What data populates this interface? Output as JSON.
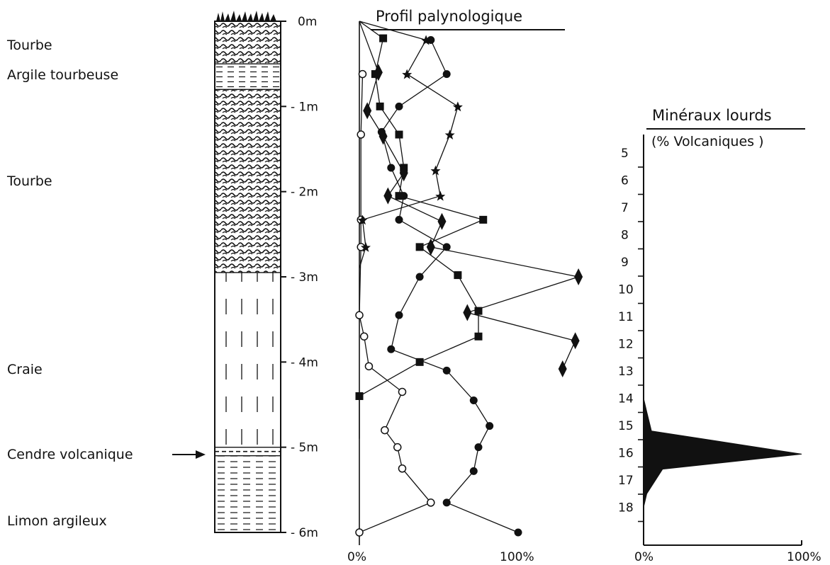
{
  "chart_data": [
    {
      "type": "stratigraphic-column",
      "layers": [
        {
          "label": "Tourbe",
          "top_m": 0.0,
          "bottom_m": 0.5,
          "pattern": "peat"
        },
        {
          "label": "Argile tourbeuse",
          "top_m": 0.5,
          "bottom_m": 0.8,
          "pattern": "clay"
        },
        {
          "label": "Tourbe",
          "top_m": 0.8,
          "bottom_m": 2.95,
          "pattern": "peat"
        },
        {
          "label": "Craie",
          "top_m": 2.95,
          "bottom_m": 5.0,
          "pattern": "chalk"
        },
        {
          "label": "Cendre volcanique",
          "top_m": 5.0,
          "bottom_m": 5.1,
          "pattern": "ash"
        },
        {
          "label": "Limon argileux",
          "top_m": 5.1,
          "bottom_m": 6.0,
          "pattern": "silt"
        }
      ],
      "depth_ticks": [
        "0m",
        "- 1m",
        "- 2m",
        "- 3m",
        "- 4m",
        "- 5m",
        "- 6m"
      ],
      "ash_arrow_label": "Cendre volcanique"
    },
    {
      "type": "line",
      "title": "Profil palynologique",
      "x_ticks": [
        "0%",
        "100%"
      ],
      "xlim": [
        0,
        100
      ],
      "ylim_depth_m": [
        0,
        6
      ],
      "series": [
        {
          "marker": "open-circle",
          "points": [
            {
              "x": 2,
              "depth": 0.62
            },
            {
              "x": 1,
              "depth": 1.33
            },
            {
              "x": 1,
              "depth": 2.33
            },
            {
              "x": 1,
              "depth": 2.65
            },
            {
              "x": 0,
              "depth": 3.45
            },
            {
              "x": 3,
              "depth": 3.7
            },
            {
              "x": 6,
              "depth": 4.05
            },
            {
              "x": 27,
              "depth": 4.35
            },
            {
              "x": 16,
              "depth": 4.8
            },
            {
              "x": 24,
              "depth": 5.0
            },
            {
              "x": 27,
              "depth": 5.25
            },
            {
              "x": 45,
              "depth": 5.65
            },
            {
              "x": 0,
              "depth": 6.0
            }
          ]
        },
        {
          "marker": "filled-circle",
          "points": [
            {
              "x": 45,
              "depth": 0.22
            },
            {
              "x": 55,
              "depth": 0.62
            },
            {
              "x": 25,
              "depth": 1.0
            },
            {
              "x": 14,
              "depth": 1.3
            },
            {
              "x": 20,
              "depth": 1.72
            },
            {
              "x": 28,
              "depth": 2.05
            },
            {
              "x": 25,
              "depth": 2.33
            },
            {
              "x": 55,
              "depth": 2.65
            },
            {
              "x": 38,
              "depth": 3.0
            },
            {
              "x": 25,
              "depth": 3.45
            },
            {
              "x": 20,
              "depth": 3.85
            },
            {
              "x": 55,
              "depth": 4.1
            },
            {
              "x": 72,
              "depth": 4.45
            },
            {
              "x": 82,
              "depth": 4.75
            },
            {
              "x": 75,
              "depth": 5.0
            },
            {
              "x": 72,
              "depth": 5.28
            },
            {
              "x": 55,
              "depth": 5.65
            },
            {
              "x": 100,
              "depth": 6.0
            }
          ]
        },
        {
          "marker": "square",
          "points": [
            {
              "x": 0,
              "depth": 0.0
            },
            {
              "x": 15,
              "depth": 0.2
            },
            {
              "x": 10,
              "depth": 0.62
            },
            {
              "x": 13,
              "depth": 1.0
            },
            {
              "x": 25,
              "depth": 1.33
            },
            {
              "x": 28,
              "depth": 1.72
            },
            {
              "x": 25,
              "depth": 2.05
            },
            {
              "x": 78,
              "depth": 2.33
            },
            {
              "x": 38,
              "depth": 2.65
            },
            {
              "x": 62,
              "depth": 2.98
            },
            {
              "x": 75,
              "depth": 3.4
            },
            {
              "x": 75,
              "depth": 3.7
            },
            {
              "x": 38,
              "depth": 4.0
            },
            {
              "x": 0,
              "depth": 4.4
            },
            {
              "x": 0,
              "depth": 4.9
            }
          ]
        },
        {
          "marker": "diamond",
          "points": [
            {
              "x": 0,
              "depth": 0.0
            },
            {
              "x": 12,
              "depth": 0.6
            },
            {
              "x": 5,
              "depth": 1.05
            },
            {
              "x": 15,
              "depth": 1.35
            },
            {
              "x": 28,
              "depth": 1.78
            },
            {
              "x": 18,
              "depth": 2.05
            },
            {
              "x": 52,
              "depth": 2.35
            },
            {
              "x": 45,
              "depth": 2.65
            },
            {
              "x": 138,
              "depth": 3.0
            },
            {
              "x": 68,
              "depth": 3.42
            },
            {
              "x": 136,
              "depth": 3.75
            },
            {
              "x": 128,
              "depth": 4.08
            }
          ]
        },
        {
          "marker": "star",
          "points": [
            {
              "x": 0,
              "depth": 0.0
            },
            {
              "x": 42,
              "depth": 0.22
            },
            {
              "x": 30,
              "depth": 0.62
            },
            {
              "x": 62,
              "depth": 1.0
            },
            {
              "x": 57,
              "depth": 1.33
            },
            {
              "x": 48,
              "depth": 1.75
            },
            {
              "x": 51,
              "depth": 2.05
            },
            {
              "x": 2,
              "depth": 2.33
            },
            {
              "x": 4,
              "depth": 2.65
            },
            {
              "x": 0,
              "depth": 2.9
            }
          ]
        }
      ]
    },
    {
      "type": "area",
      "title": "Minéraux lourds",
      "subtitle": "(% Volcaniques )",
      "y_ticks": [
        "5",
        "6",
        "7",
        "8",
        "9",
        "10",
        "11",
        "12",
        "13",
        "14",
        "15",
        "16",
        "17",
        "18"
      ],
      "x_ticks": [
        "0%",
        "100%"
      ],
      "xlim": [
        0,
        100
      ],
      "values": [
        {
          "sample": 14,
          "pct": 0
        },
        {
          "sample": 14.5,
          "pct": 2
        },
        {
          "sample": 15.2,
          "pct": 5
        },
        {
          "sample": 16.05,
          "pct": 100
        },
        {
          "sample": 16.6,
          "pct": 12
        },
        {
          "sample": 17.5,
          "pct": 2
        },
        {
          "sample": 18,
          "pct": 0
        }
      ]
    }
  ]
}
